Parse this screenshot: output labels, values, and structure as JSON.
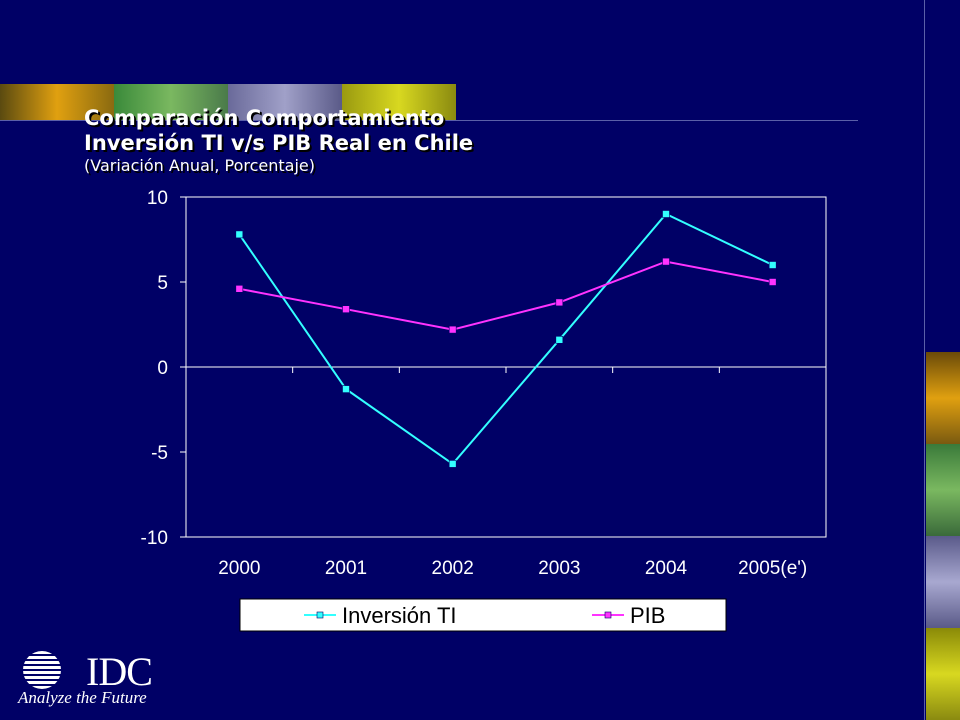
{
  "slide": {
    "title_line1": "Comparación Comportamiento",
    "title_line2": "Inversión TI v/s PIB Real en Chile",
    "title_line3": "(Variación Anual, Porcentaje)"
  },
  "logo": {
    "wordmark": "IDC",
    "tagline": "Analyze the Future"
  },
  "colors": {
    "background": "#000066",
    "plot_background": "#000066",
    "series_inversion": "#33ffff",
    "series_pib": "#ff33ff"
  },
  "chart_data": {
    "type": "line",
    "categories": [
      "2000",
      "2001",
      "2002",
      "2003",
      "2004",
      "2005(e')"
    ],
    "series": [
      {
        "name": "Inversión TI",
        "values": [
          7.8,
          -1.3,
          -5.7,
          1.6,
          9.0,
          6.0
        ]
      },
      {
        "name": "PIB",
        "values": [
          4.6,
          3.4,
          2.2,
          3.8,
          6.2,
          5.0
        ]
      }
    ],
    "yticks": [
      10,
      5,
      0,
      -5,
      -10
    ],
    "ylim": [
      -10,
      10
    ],
    "grid": false,
    "legend": "bottom"
  }
}
